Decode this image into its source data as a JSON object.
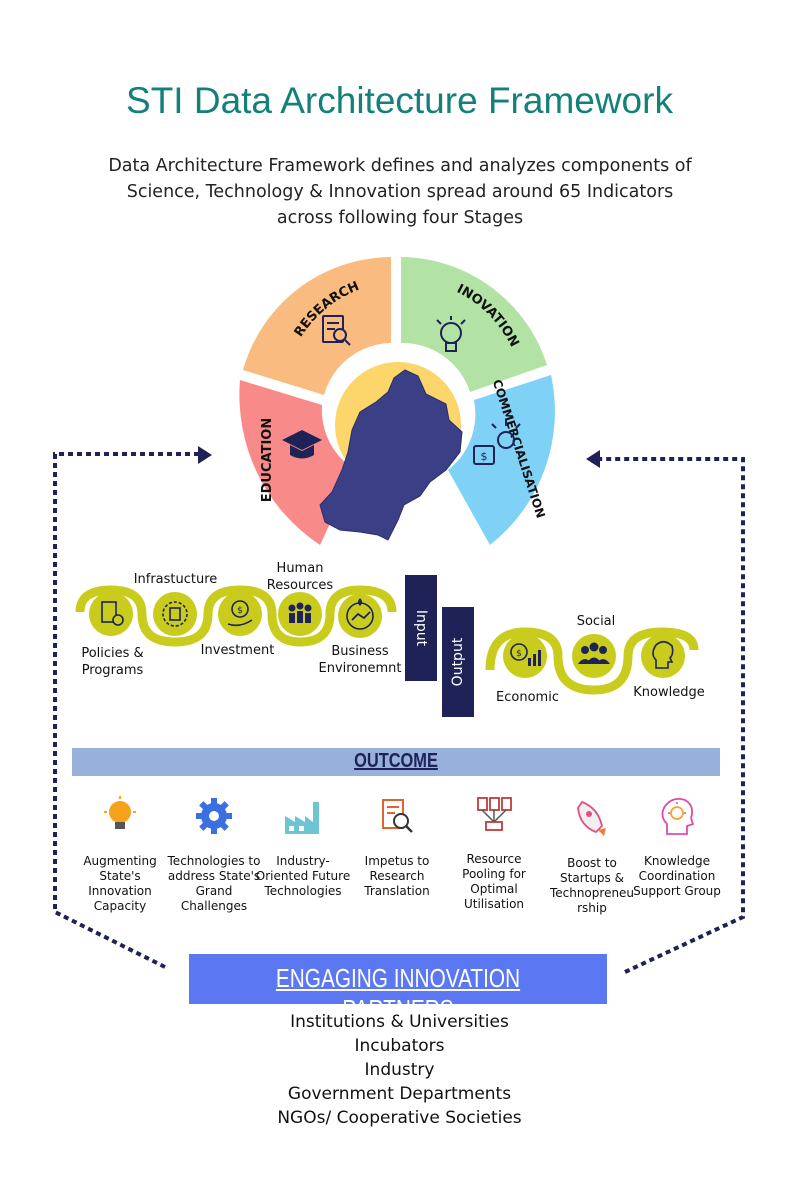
{
  "title": "STI Data Architecture Framework",
  "subtitle_lines": [
    "Data Architecture Framework defines and analyzes components of",
    "Science, Technology & Innovation spread around 65 Indicators",
    "across following four Stages"
  ],
  "stages": {
    "research": "RESEARCH",
    "inovation": "INOVATION",
    "education": "EDUCATION",
    "commercialisation": "COMMERCIALISATION"
  },
  "stage_colors": {
    "research": "#f9bb7f",
    "inovation": "#b2e3a4",
    "education": "#f98a8a",
    "commercialisation": "#7fd2f6"
  },
  "input_items": {
    "policies": "Policies & Programs",
    "infrastructure": "Infrastucture",
    "investment": "Investment",
    "human_resources": "Human Resources",
    "business_environment": "Business Environemnt"
  },
  "input_label": "Input",
  "output_label": "Output",
  "output_items": {
    "economic": "Economic",
    "social": "Social",
    "knowledge": "Knowledge"
  },
  "outcome_title": "OUTCOME",
  "outcomes": [
    {
      "label": "Augmenting State's Innovation Capacity",
      "icon": "bulb-icon"
    },
    {
      "label": "Technologies to address State's Grand Challenges",
      "icon": "gear-icon"
    },
    {
      "label": "Industry-Oriented Future Technologies",
      "icon": "factory-icon"
    },
    {
      "label": "Impetus to Research Translation",
      "icon": "document-search-icon"
    },
    {
      "label": "Resource Pooling for Optimal Utilisation",
      "icon": "network-icon"
    },
    {
      "label": "Boost to Startups & Technopreneu rship",
      "icon": "rocket-icon"
    },
    {
      "label": "Knowledge Coordination Support Group",
      "icon": "head-bulb-icon"
    }
  ],
  "partners_title": "ENGAGING INNOVATION PARTNERS",
  "partners": [
    "Institutions & Universities",
    "Incubators",
    "Industry",
    "Government Departments",
    "NGOs/ Cooperative Societies"
  ],
  "colors": {
    "title": "#14807a",
    "navy": "#1e2257",
    "olive": "#c9cc1c",
    "outcome_bar": "#98b0dc",
    "partners_box": "#5b77f2"
  }
}
